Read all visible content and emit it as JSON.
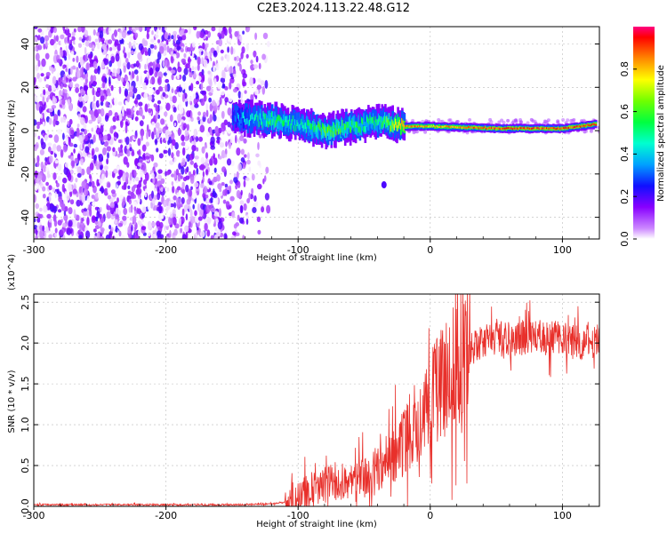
{
  "title": "C2E3.2024.113.22.48.G12",
  "chart_data": [
    {
      "type": "heatmap",
      "xlabel": "Height of straight line (km)",
      "ylabel": "Frequency (Hz)",
      "xlim": [
        -300,
        128
      ],
      "ylim": [
        -50,
        48
      ],
      "xticks": [
        -300,
        -200,
        -100,
        0,
        100
      ],
      "yticks": [
        -40,
        -20,
        0,
        20,
        40
      ],
      "colorbar": {
        "label": "Normalized spectral amplitude",
        "range": [
          0,
          1
        ],
        "ticks": [
          "0.0",
          "0.2",
          "0.4",
          "0.6",
          "0.8"
        ]
      },
      "ridge": [
        {
          "x": -150,
          "freq": 6,
          "amp": 0.3
        },
        {
          "x": -120,
          "freq": 5,
          "amp": 0.55
        },
        {
          "x": -100,
          "freq": 3,
          "amp": 0.45
        },
        {
          "x": -80,
          "freq": 0,
          "amp": 0.6
        },
        {
          "x": -60,
          "freq": 2,
          "amp": 0.55
        },
        {
          "x": -40,
          "freq": 4,
          "amp": 0.5
        },
        {
          "x": -20,
          "freq": 2,
          "amp": 0.85
        },
        {
          "x": 0,
          "freq": 2,
          "amp": 0.8
        },
        {
          "x": 50,
          "freq": 1,
          "amp": 0.9
        },
        {
          "x": 100,
          "freq": 1,
          "amp": 0.9
        },
        {
          "x": 125,
          "freq": 3,
          "amp": 0.9
        }
      ],
      "grid": true
    },
    {
      "type": "line",
      "xlabel": "Height of straight line (km)",
      "ylabel": "SNR (10 * v/v)",
      "yscale_label": "(x10^4)",
      "xlim": [
        -300,
        128
      ],
      "ylim": [
        0,
        2.6
      ],
      "xticks": [
        -300,
        -200,
        -100,
        0,
        100
      ],
      "yticks": [
        "0.0",
        "0.5",
        "1.0",
        "1.5",
        "2.0",
        "2.5"
      ],
      "series": [
        {
          "color": "#e8302b",
          "x": [
            -300,
            -200,
            -150,
            -120,
            -110,
            -100,
            -90,
            -80,
            -70,
            -60,
            -50,
            -40,
            -30,
            -20,
            -10,
            0,
            10,
            20,
            30,
            40,
            50,
            60,
            70,
            80,
            90,
            100,
            110,
            120,
            128
          ],
          "y": [
            0.02,
            0.02,
            0.02,
            0.03,
            0.05,
            0.12,
            0.2,
            0.25,
            0.3,
            0.28,
            0.35,
            0.45,
            0.6,
            0.8,
            1.1,
            1.3,
            1.55,
            1.75,
            1.9,
            2.0,
            2.05,
            2.05,
            2.07,
            2.07,
            2.05,
            2.08,
            2.0,
            2.05,
            2.0
          ]
        }
      ]
    }
  ]
}
